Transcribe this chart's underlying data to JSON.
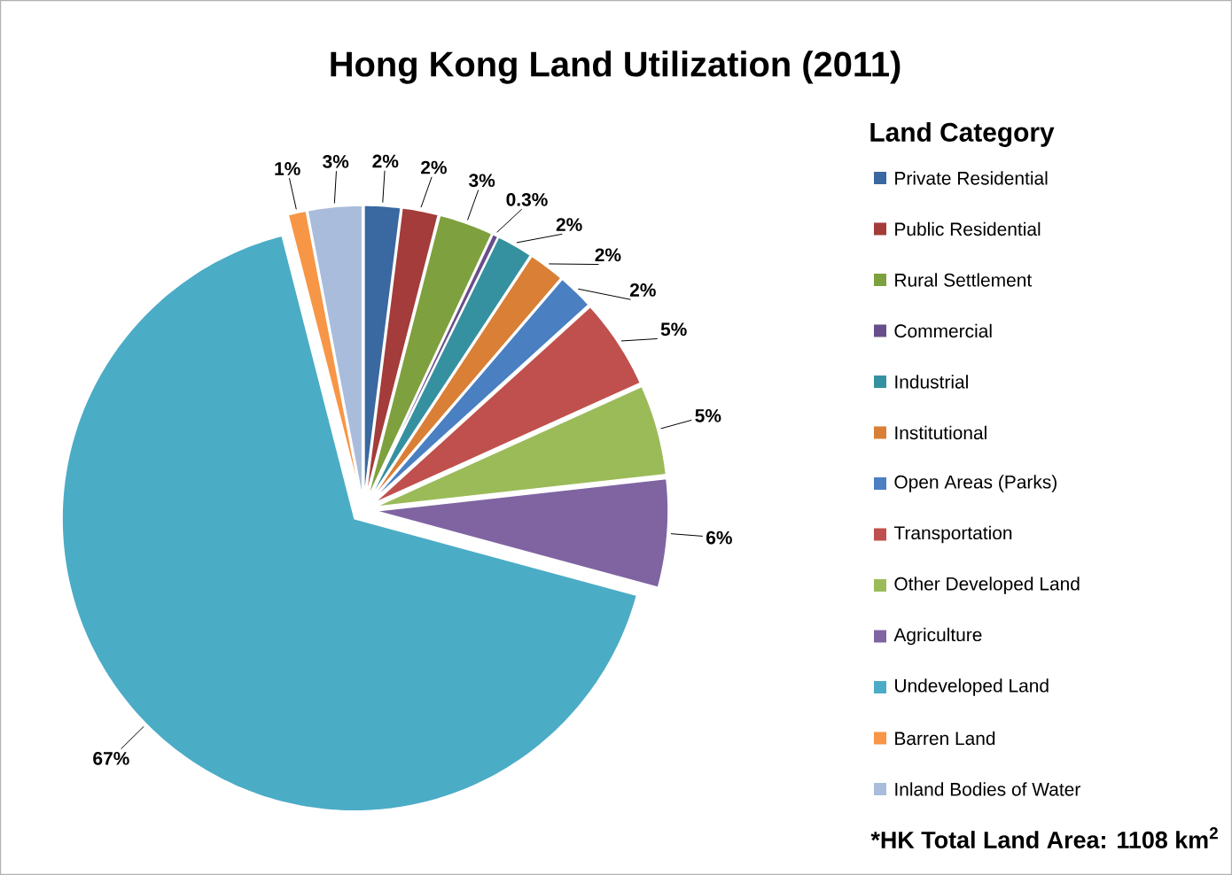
{
  "chart_data": {
    "type": "pie",
    "title": "Hong Kong Land Utilization (2011)",
    "categories": [
      "Private Residential",
      "Public Residential",
      "Rural Settlement",
      "Commercial",
      "Industrial",
      "Institutional",
      "Open Areas (Parks)",
      "Transportation",
      "Other Developed Land",
      "Agriculture",
      "Undeveloped Land",
      "Barren Land",
      "Inland Bodies of Water"
    ],
    "values": [
      2,
      2,
      3,
      0.3,
      2,
      2,
      2,
      5,
      5,
      6,
      67,
      1,
      3
    ],
    "value_labels": [
      "2%",
      "2%",
      "3%",
      "0.3%",
      "2%",
      "2%",
      "2%",
      "5%",
      "5%",
      "6%",
      "67%",
      "1%",
      "3%"
    ],
    "colors": [
      "#3a68a0",
      "#a33c3a",
      "#7ea03e",
      "#684e8a",
      "#35919f",
      "#d97f36",
      "#4a7fc1",
      "#c0504d",
      "#9bbb59",
      "#8064a2",
      "#4bacc6",
      "#f79646",
      "#a9bcdc"
    ],
    "legend": "right",
    "legend_title": "Land Category",
    "annotations": [
      "*HK Total Land Area: 1108 km$^{2}$"
    ]
  }
}
